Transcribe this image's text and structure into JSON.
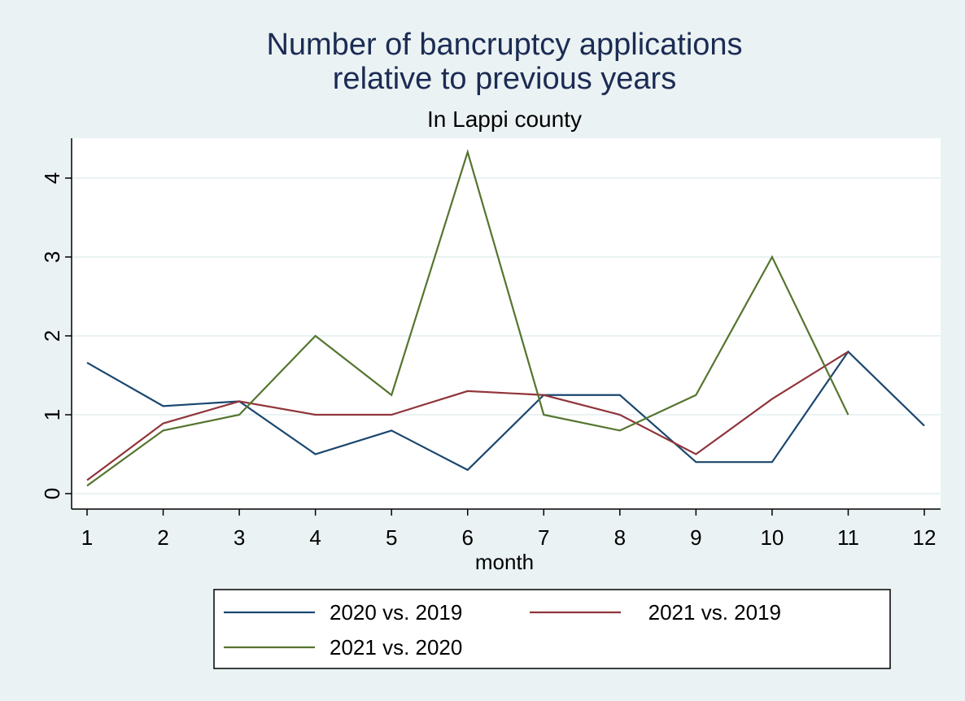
{
  "chart_data": {
    "type": "line",
    "title": "Number of bancruptcy applications relative to previous years",
    "title_lines": [
      "Number of bancruptcy applications",
      "relative to previous years"
    ],
    "subtitle": "In Lappi county",
    "xlabel": "month",
    "ylabel": "",
    "xlim": [
      1,
      12
    ],
    "ylim": [
      0,
      4.4
    ],
    "x_ticks": [
      1,
      2,
      3,
      4,
      5,
      6,
      7,
      8,
      9,
      10,
      11,
      12
    ],
    "y_ticks": [
      0,
      1,
      2,
      3,
      4
    ],
    "grid": true,
    "legend_position": "bottom",
    "series": [
      {
        "name": "2020 vs. 2019",
        "color": "#1a476f",
        "x": [
          1,
          2,
          3,
          4,
          5,
          6,
          7,
          8,
          9,
          10,
          11,
          12
        ],
        "values": [
          1.66,
          1.11,
          1.17,
          0.5,
          0.8,
          0.3,
          1.25,
          1.25,
          0.4,
          0.4,
          1.8,
          0.86
        ]
      },
      {
        "name": "2021 vs. 2019",
        "color": "#90353b",
        "x": [
          1,
          2,
          3,
          4,
          5,
          6,
          7,
          8,
          9,
          10,
          11
        ],
        "values": [
          0.17,
          0.89,
          1.17,
          1.0,
          1.0,
          1.3,
          1.25,
          1.0,
          0.5,
          1.2,
          1.8
        ]
      },
      {
        "name": "2021 vs. 2020",
        "color": "#55752f",
        "x": [
          1,
          2,
          3,
          4,
          5,
          6,
          7,
          8,
          9,
          10,
          11
        ],
        "values": [
          0.1,
          0.8,
          1.0,
          2.0,
          1.25,
          4.33,
          1.0,
          0.8,
          1.25,
          3.0,
          1.0
        ]
      }
    ]
  }
}
